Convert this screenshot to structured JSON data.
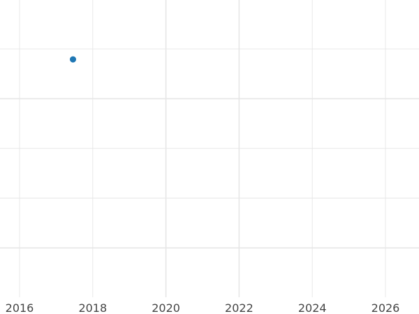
{
  "chart_data": {
    "type": "scatter",
    "title": "",
    "xlabel": "",
    "ylabel": "",
    "x_ticks": [
      "2016",
      "2018",
      "2020",
      "2022",
      "2024",
      "2026"
    ],
    "xlim": [
      2016,
      2026.9
    ],
    "y_tick_labels_shown": false,
    "grid": true,
    "series": [
      {
        "points": [
          {
            "x": 2017.46,
            "y": 4.79
          }
        ],
        "color": "#1f77b4"
      }
    ],
    "ylim": [
      0,
      6
    ]
  }
}
